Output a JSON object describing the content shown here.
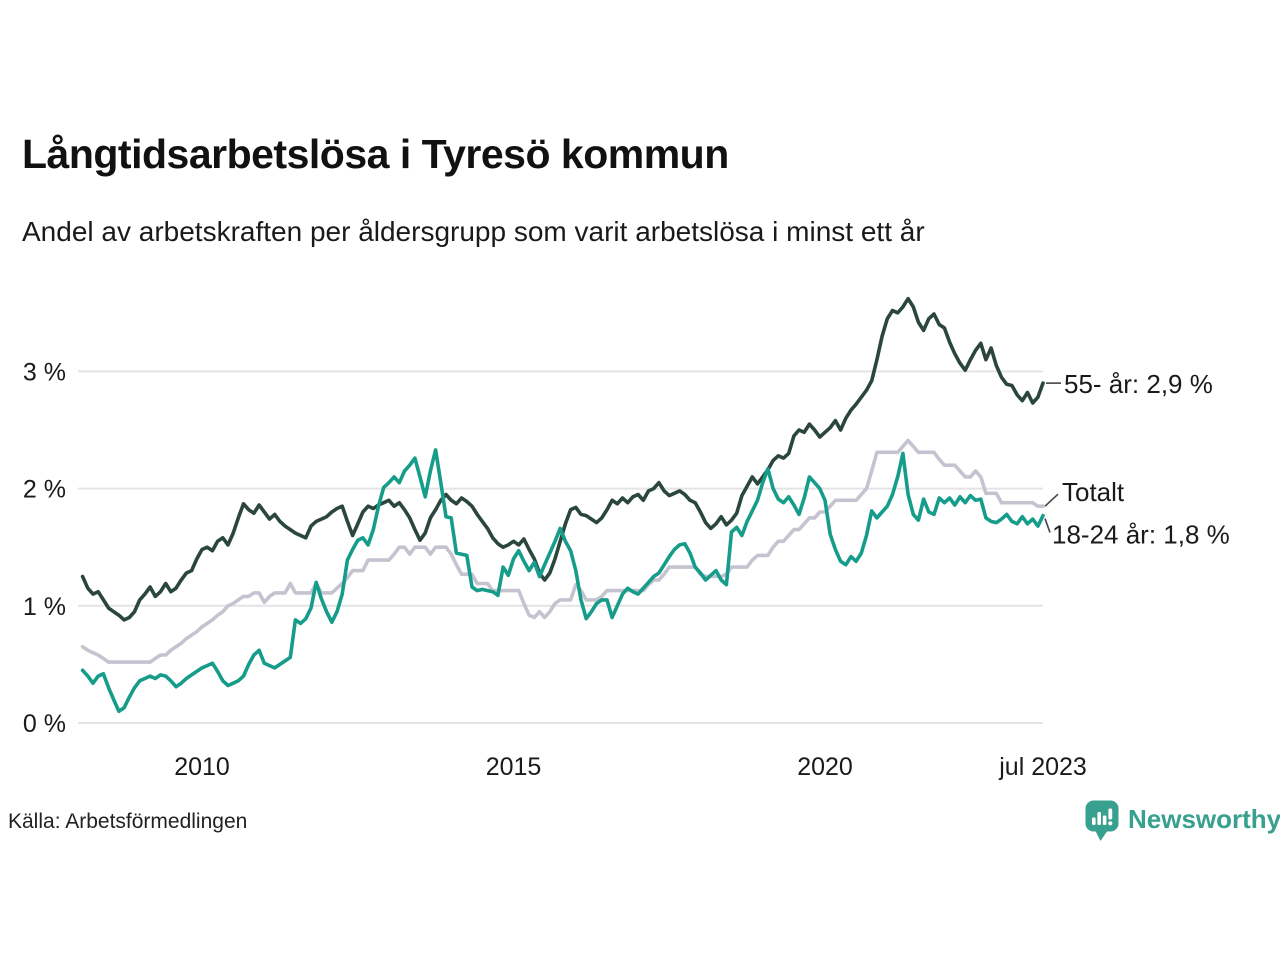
{
  "title": "Långtidsarbetslösa i Tyresö kommun",
  "subtitle": "Andel av arbetskraften per åldersgrupp som varit arbetslösa i minst ett år",
  "source": "Källa: Arbetsförmedlingen",
  "branding": {
    "name": "Newsworthy",
    "color": "#37a08e",
    "icon": "speech-bubble-bar-chart"
  },
  "colors": {
    "series_55": "#2a463e",
    "series_total": "#c5c3d0",
    "series_18_24": "#169c8a",
    "gridline": "#e4e4e7",
    "text": "#1a1a1a",
    "connector": "#444444"
  },
  "chart_data": {
    "type": "line",
    "title": "Långtidsarbetslösa i Tyresö kommun",
    "subtitle": "Andel av arbetskraften per åldersgrupp som varit arbetslösa i minst ett år",
    "frequency": "monthly",
    "x_start": "2008-02",
    "x_end": "2023-07",
    "ylim": [
      0,
      3.8
    ],
    "grid": true,
    "y_ticks": [
      {
        "value": 0,
        "label": "0 %"
      },
      {
        "value": 1,
        "label": "1 %"
      },
      {
        "value": 2,
        "label": "2 %"
      },
      {
        "value": 3,
        "label": "3 %"
      }
    ],
    "x_ticks": [
      {
        "year": 2010.0,
        "label": "2010"
      },
      {
        "year": 2015.0,
        "label": "2015"
      },
      {
        "year": 2020.0,
        "label": "2020"
      },
      {
        "year": 2023.5,
        "label": "jul 2023"
      }
    ],
    "series": [
      {
        "name": "55- år",
        "end_label": "55- år: 2,9 %",
        "end_value_text": "2,9 %",
        "color": "#2a463e",
        "values": [
          1.25,
          1.15,
          1.1,
          1.12,
          1.05,
          0.98,
          0.95,
          0.92,
          0.88,
          0.9,
          0.95,
          1.05,
          1.1,
          1.16,
          1.08,
          1.12,
          1.19,
          1.12,
          1.15,
          1.22,
          1.28,
          1.3,
          1.4,
          1.48,
          1.5,
          1.47,
          1.55,
          1.58,
          1.52,
          1.62,
          1.75,
          1.87,
          1.82,
          1.79,
          1.86,
          1.8,
          1.74,
          1.78,
          1.72,
          1.68,
          1.65,
          1.62,
          1.6,
          1.58,
          1.68,
          1.72,
          1.74,
          1.76,
          1.8,
          1.83,
          1.85,
          1.72,
          1.6,
          1.7,
          1.8,
          1.85,
          1.83,
          1.86,
          1.88,
          1.9,
          1.85,
          1.88,
          1.82,
          1.75,
          1.65,
          1.56,
          1.62,
          1.75,
          1.82,
          1.9,
          1.95,
          1.9,
          1.87,
          1.92,
          1.89,
          1.85,
          1.78,
          1.72,
          1.66,
          1.58,
          1.53,
          1.5,
          1.52,
          1.55,
          1.52,
          1.57,
          1.48,
          1.4,
          1.28,
          1.22,
          1.28,
          1.4,
          1.55,
          1.7,
          1.82,
          1.84,
          1.78,
          1.77,
          1.74,
          1.71,
          1.75,
          1.82,
          1.9,
          1.87,
          1.92,
          1.88,
          1.93,
          1.95,
          1.9,
          1.98,
          2.0,
          2.05,
          1.98,
          1.94,
          1.96,
          1.98,
          1.95,
          1.9,
          1.88,
          1.8,
          1.71,
          1.66,
          1.7,
          1.76,
          1.69,
          1.73,
          1.79,
          1.94,
          2.02,
          2.1,
          2.04,
          2.1,
          2.16,
          2.24,
          2.28,
          2.26,
          2.3,
          2.45,
          2.5,
          2.48,
          2.55,
          2.5,
          2.44,
          2.48,
          2.52,
          2.58,
          2.5,
          2.6,
          2.67,
          2.72,
          2.78,
          2.84,
          2.92,
          3.1,
          3.3,
          3.45,
          3.52,
          3.5,
          3.55,
          3.62,
          3.55,
          3.42,
          3.35,
          3.45,
          3.49,
          3.4,
          3.37,
          3.25,
          3.15,
          3.07,
          3.01,
          3.1,
          3.18,
          3.24,
          3.1,
          3.2,
          3.05,
          2.95,
          2.89,
          2.88,
          2.8,
          2.75,
          2.82,
          2.73,
          2.78,
          2.9
        ]
      },
      {
        "name": "Totalt",
        "end_label": "Totalt",
        "end_value_text": "",
        "color": "#c5c3d0",
        "values": [
          0.65,
          0.62,
          0.6,
          0.58,
          0.55,
          0.52,
          0.52,
          0.52,
          0.52,
          0.52,
          0.52,
          0.52,
          0.52,
          0.52,
          0.55,
          0.58,
          0.58,
          0.62,
          0.65,
          0.68,
          0.72,
          0.75,
          0.78,
          0.82,
          0.85,
          0.88,
          0.92,
          0.95,
          1.0,
          1.02,
          1.05,
          1.08,
          1.08,
          1.11,
          1.11,
          1.03,
          1.08,
          1.11,
          1.11,
          1.11,
          1.19,
          1.11,
          1.11,
          1.11,
          1.11,
          1.19,
          1.11,
          1.11,
          1.11,
          1.15,
          1.19,
          1.24,
          1.3,
          1.3,
          1.3,
          1.39,
          1.39,
          1.39,
          1.39,
          1.39,
          1.44,
          1.5,
          1.5,
          1.44,
          1.5,
          1.5,
          1.5,
          1.44,
          1.5,
          1.5,
          1.5,
          1.44,
          1.35,
          1.27,
          1.27,
          1.27,
          1.19,
          1.19,
          1.19,
          1.13,
          1.13,
          1.13,
          1.13,
          1.13,
          1.13,
          1.02,
          0.92,
          0.9,
          0.95,
          0.9,
          0.95,
          1.02,
          1.05,
          1.05,
          1.05,
          1.18,
          1.13,
          1.05,
          1.05,
          1.05,
          1.08,
          1.13,
          1.13,
          1.13,
          1.13,
          1.13,
          1.13,
          1.13,
          1.13,
          1.18,
          1.22,
          1.22,
          1.27,
          1.33,
          1.33,
          1.33,
          1.33,
          1.33,
          1.33,
          1.27,
          1.25,
          1.25,
          1.25,
          1.25,
          1.27,
          1.33,
          1.33,
          1.33,
          1.33,
          1.39,
          1.43,
          1.43,
          1.43,
          1.5,
          1.55,
          1.55,
          1.6,
          1.65,
          1.65,
          1.7,
          1.75,
          1.75,
          1.8,
          1.8,
          1.85,
          1.9,
          1.9,
          1.9,
          1.9,
          1.9,
          1.95,
          2.0,
          2.15,
          2.31,
          2.31,
          2.31,
          2.31,
          2.31,
          2.36,
          2.41,
          2.36,
          2.31,
          2.31,
          2.31,
          2.31,
          2.25,
          2.2,
          2.2,
          2.2,
          2.15,
          2.1,
          2.1,
          2.15,
          2.1,
          1.96,
          1.96,
          1.96,
          1.88,
          1.88,
          1.88,
          1.88,
          1.88,
          1.88,
          1.88,
          1.85,
          1.85
        ]
      },
      {
        "name": "18-24 år",
        "end_label": "18-24 år: 1,8 %",
        "end_value_text": "1,8 %",
        "color": "#169c8a",
        "values": [
          0.45,
          0.4,
          0.34,
          0.4,
          0.42,
          0.3,
          0.2,
          0.1,
          0.13,
          0.22,
          0.3,
          0.36,
          0.38,
          0.4,
          0.38,
          0.41,
          0.4,
          0.36,
          0.31,
          0.34,
          0.38,
          0.41,
          0.44,
          0.47,
          0.49,
          0.51,
          0.44,
          0.36,
          0.32,
          0.34,
          0.36,
          0.4,
          0.5,
          0.58,
          0.62,
          0.51,
          0.49,
          0.47,
          0.5,
          0.53,
          0.56,
          0.88,
          0.85,
          0.89,
          0.98,
          1.2,
          1.06,
          0.95,
          0.86,
          0.95,
          1.1,
          1.39,
          1.48,
          1.56,
          1.58,
          1.52,
          1.65,
          1.85,
          2.01,
          2.05,
          2.1,
          2.05,
          2.15,
          2.2,
          2.26,
          2.1,
          1.93,
          2.15,
          2.33,
          2.05,
          1.76,
          1.75,
          1.45,
          1.44,
          1.43,
          1.16,
          1.13,
          1.14,
          1.13,
          1.12,
          1.09,
          1.33,
          1.26,
          1.4,
          1.47,
          1.38,
          1.3,
          1.37,
          1.25,
          1.35,
          1.45,
          1.55,
          1.66,
          1.55,
          1.47,
          1.3,
          1.05,
          0.89,
          0.95,
          1.02,
          1.05,
          1.05,
          0.9,
          1.0,
          1.1,
          1.15,
          1.12,
          1.1,
          1.15,
          1.2,
          1.25,
          1.28,
          1.35,
          1.42,
          1.48,
          1.52,
          1.53,
          1.45,
          1.33,
          1.28,
          1.22,
          1.26,
          1.3,
          1.22,
          1.18,
          1.63,
          1.67,
          1.6,
          1.72,
          1.81,
          1.9,
          2.05,
          2.17,
          2.0,
          1.91,
          1.88,
          1.93,
          1.86,
          1.78,
          1.92,
          2.1,
          2.05,
          2.0,
          1.9,
          1.61,
          1.48,
          1.38,
          1.35,
          1.42,
          1.38,
          1.45,
          1.6,
          1.81,
          1.75,
          1.8,
          1.85,
          1.95,
          2.1,
          2.3,
          1.95,
          1.78,
          1.73,
          1.91,
          1.8,
          1.78,
          1.92,
          1.88,
          1.92,
          1.86,
          1.93,
          1.88,
          1.94,
          1.9,
          1.91,
          1.75,
          1.72,
          1.71,
          1.74,
          1.78,
          1.72,
          1.7,
          1.76,
          1.7,
          1.74,
          1.68,
          1.77
        ]
      }
    ]
  }
}
